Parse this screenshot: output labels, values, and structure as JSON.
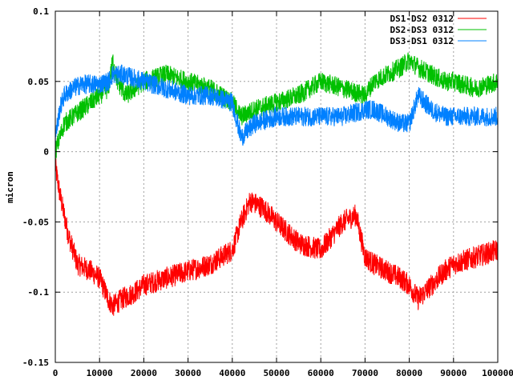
{
  "chart_data": {
    "type": "line",
    "title": "",
    "xlabel": "",
    "ylabel": "micron",
    "xlim": [
      0,
      100000
    ],
    "ylim": [
      -0.15,
      0.1
    ],
    "x_ticks": [
      0,
      10000,
      20000,
      30000,
      40000,
      50000,
      60000,
      70000,
      80000,
      90000,
      100000
    ],
    "x_tick_labels": [
      "0",
      "10000",
      "20000",
      "30000",
      "40000",
      "50000",
      "60000",
      "70000",
      "80000",
      "90000",
      "100000"
    ],
    "y_ticks": [
      0.1,
      0.05,
      0,
      -0.05,
      -0.1,
      -0.15
    ],
    "y_tick_labels": [
      "0.1",
      "0.05",
      "0",
      "-0.05",
      "-0.1",
      "-0.15"
    ],
    "grid": true,
    "legend_position": "top-right",
    "series": [
      {
        "name": "DS1-DS2 0312",
        "color": "#ff0000",
        "noise": 0.008,
        "x": [
          0,
          1000,
          3000,
          5000,
          8000,
          10000,
          12000,
          13000,
          15000,
          18000,
          20000,
          25000,
          30000,
          35000,
          40000,
          42000,
          44000,
          47000,
          50000,
          55000,
          60000,
          65000,
          68000,
          70000,
          72000,
          75000,
          78000,
          80000,
          82000,
          85000,
          88000,
          90000,
          95000,
          100000
        ],
        "y": [
          -0.01,
          -0.03,
          -0.06,
          -0.08,
          -0.085,
          -0.09,
          -0.105,
          -0.11,
          -0.105,
          -0.1,
          -0.095,
          -0.09,
          -0.085,
          -0.08,
          -0.07,
          -0.05,
          -0.035,
          -0.04,
          -0.05,
          -0.065,
          -0.07,
          -0.05,
          -0.045,
          -0.075,
          -0.08,
          -0.085,
          -0.09,
          -0.095,
          -0.105,
          -0.095,
          -0.085,
          -0.08,
          -0.075,
          -0.07
        ]
      },
      {
        "name": "DS2-DS3 0312",
        "color": "#00c000",
        "noise": 0.007,
        "x": [
          0,
          1000,
          2000,
          4000,
          6000,
          8000,
          10000,
          12000,
          13000,
          14000,
          16000,
          18000,
          20000,
          25000,
          30000,
          35000,
          40000,
          42000,
          45000,
          50000,
          55000,
          60000,
          65000,
          70000,
          72000,
          75000,
          78000,
          80000,
          82000,
          85000,
          88000,
          90000,
          95000,
          100000
        ],
        "y": [
          0.0,
          0.01,
          0.02,
          0.025,
          0.03,
          0.035,
          0.04,
          0.045,
          0.065,
          0.05,
          0.04,
          0.045,
          0.05,
          0.055,
          0.05,
          0.045,
          0.035,
          0.025,
          0.03,
          0.035,
          0.04,
          0.05,
          0.045,
          0.04,
          0.05,
          0.055,
          0.06,
          0.065,
          0.06,
          0.055,
          0.05,
          0.05,
          0.045,
          0.05
        ]
      },
      {
        "name": "DS3-DS1 0312",
        "color": "#0080ff",
        "noise": 0.007,
        "x": [
          0,
          1000,
          2000,
          4000,
          6000,
          8000,
          10000,
          12000,
          13000,
          15000,
          20000,
          25000,
          30000,
          35000,
          40000,
          42000,
          45000,
          50000,
          55000,
          60000,
          65000,
          70000,
          72000,
          75000,
          78000,
          80000,
          81000,
          82000,
          85000,
          88000,
          90000,
          95000,
          100000
        ],
        "y": [
          0.01,
          0.03,
          0.04,
          0.045,
          0.048,
          0.048,
          0.048,
          0.05,
          0.055,
          0.055,
          0.05,
          0.045,
          0.04,
          0.04,
          0.035,
          0.01,
          0.02,
          0.025,
          0.025,
          0.025,
          0.025,
          0.03,
          0.03,
          0.025,
          0.02,
          0.02,
          0.03,
          0.04,
          0.03,
          0.025,
          0.025,
          0.025,
          0.025
        ]
      }
    ]
  }
}
